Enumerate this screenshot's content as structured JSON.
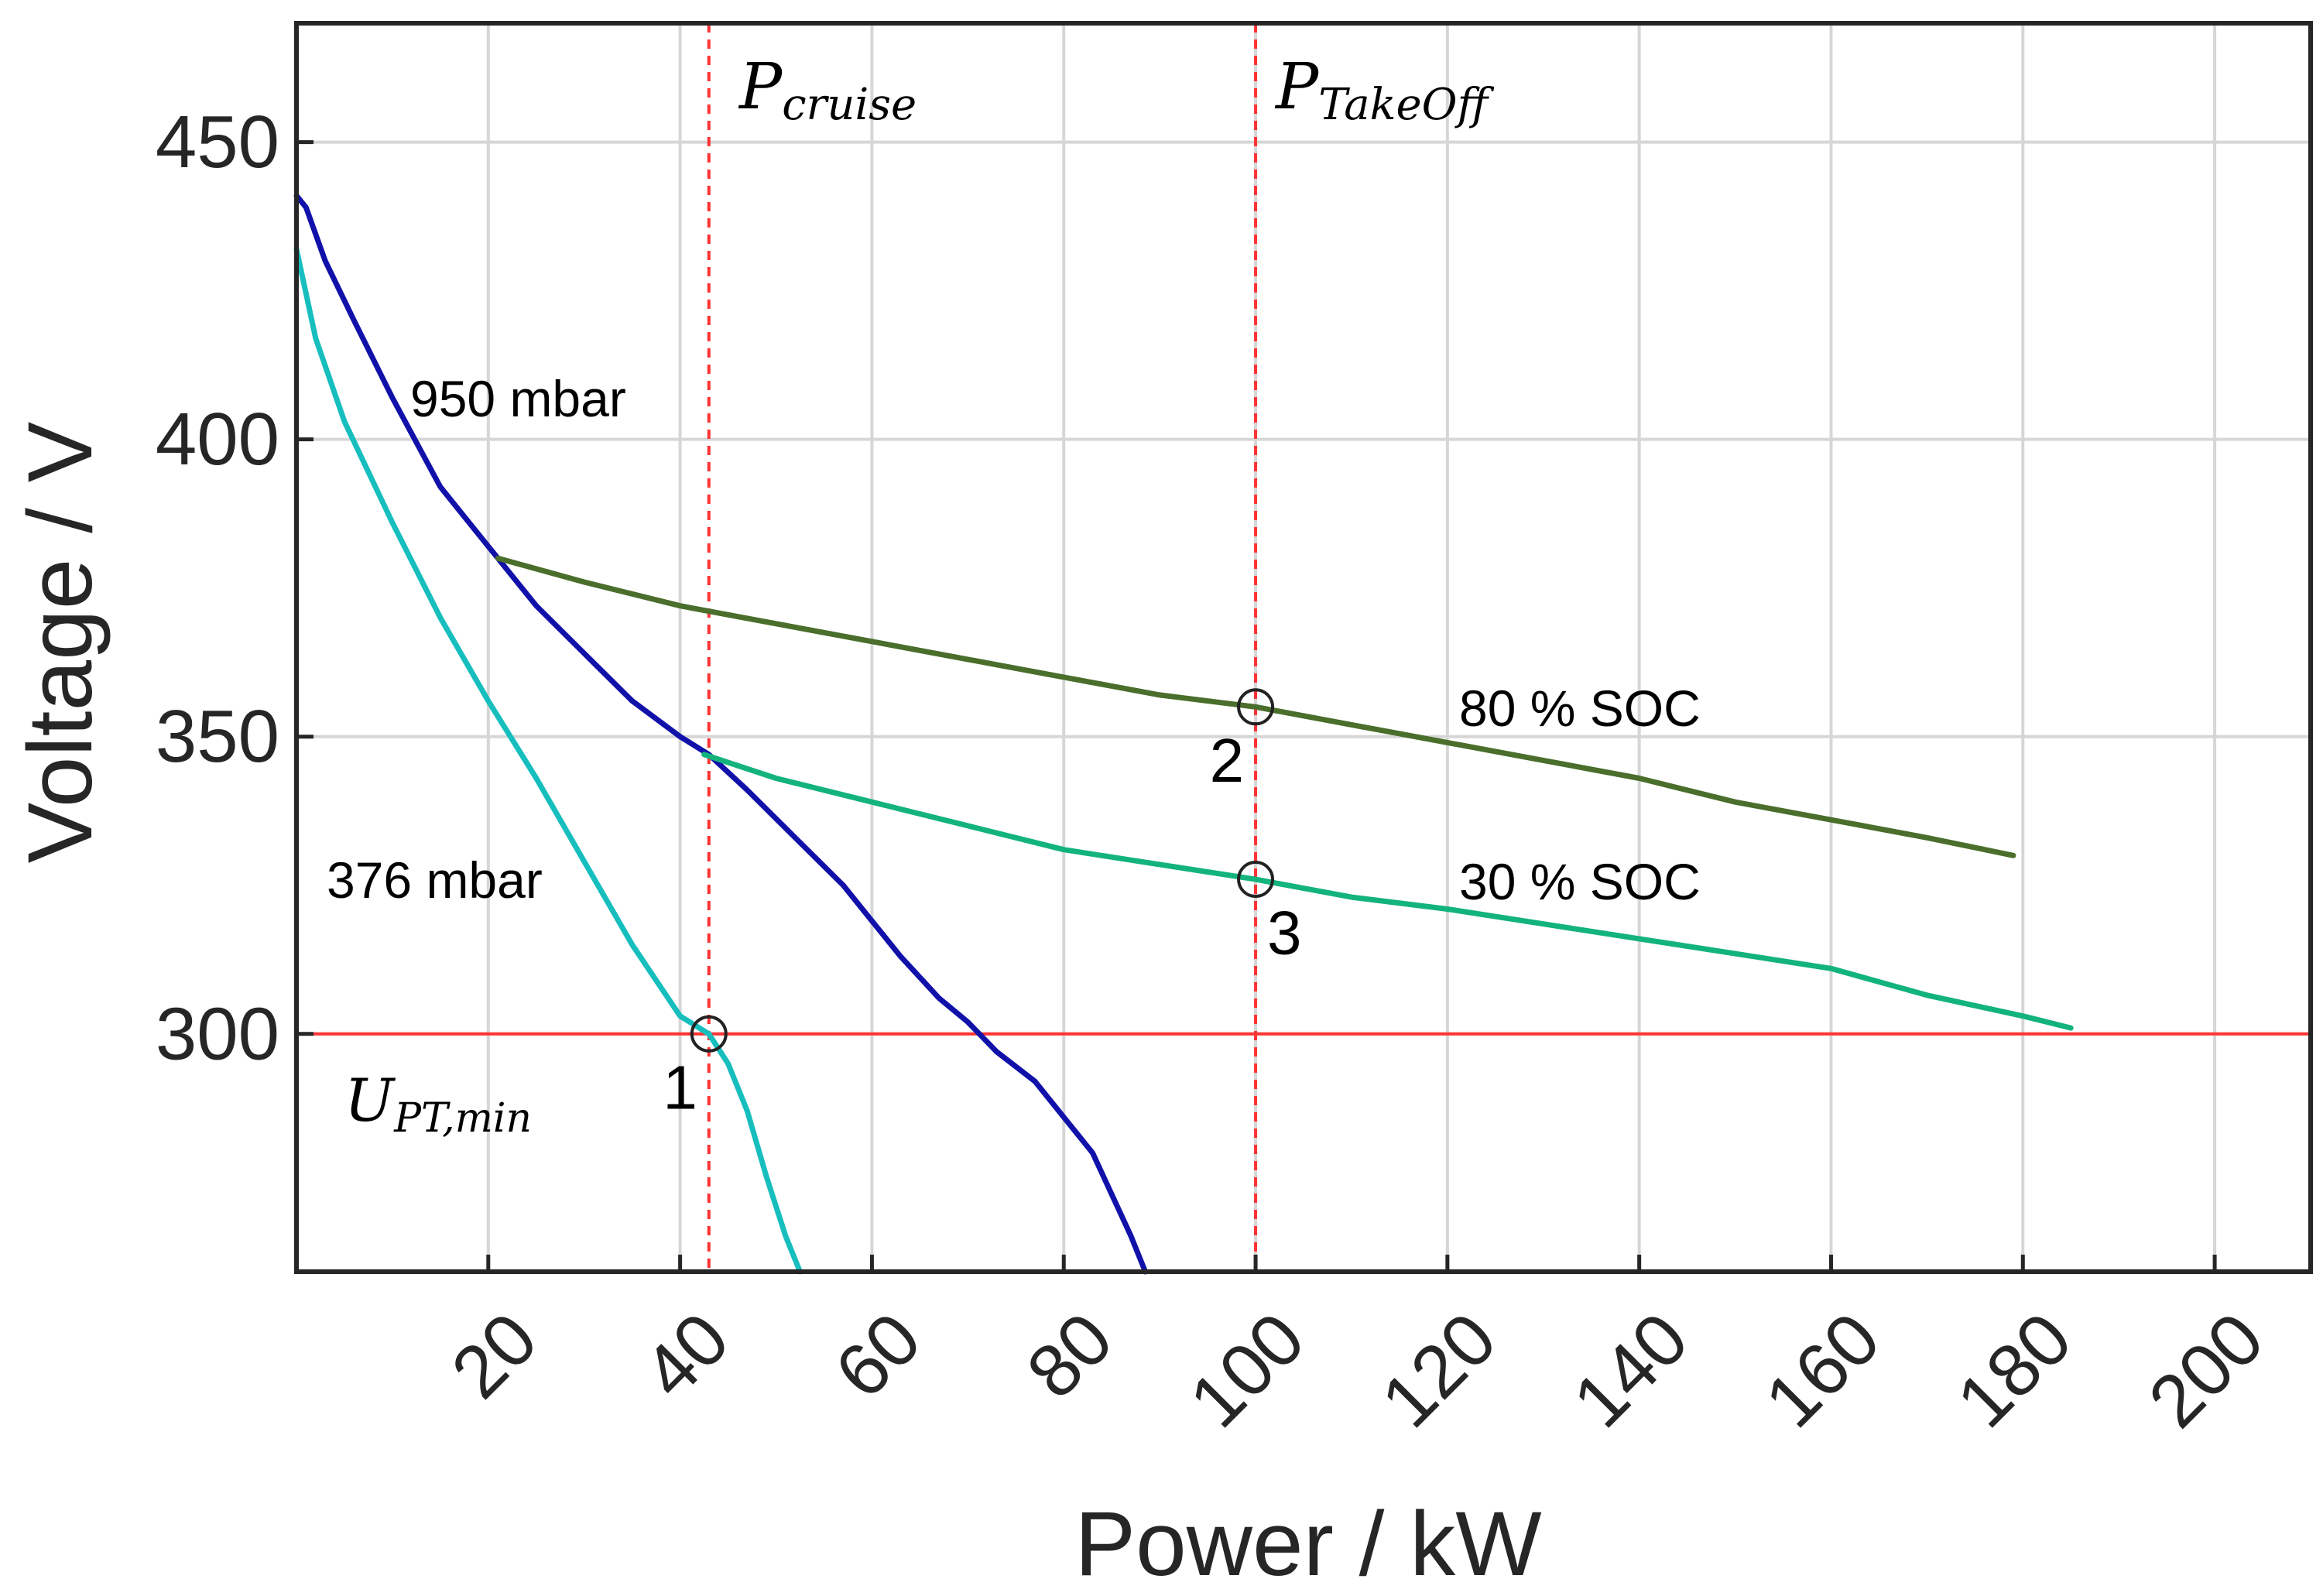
{
  "colors": {
    "p950": "#1111aa",
    "p376": "#17bebe",
    "soc80": "#4a6e2b",
    "soc30": "#13b37c",
    "threshold": "#ff3333",
    "marker": "#222222"
  },
  "chart_data": {
    "type": "line",
    "xlabel": "Power / kW",
    "ylabel": "Voltage / V",
    "xlim": [
      0,
      210
    ],
    "ylim": [
      260,
      470
    ],
    "xticks": [
      20,
      40,
      60,
      80,
      100,
      120,
      140,
      160,
      180,
      200
    ],
    "yticks": [
      300,
      350,
      400,
      450
    ],
    "grid": true,
    "series": [
      {
        "id": "p950",
        "name": "950 mbar",
        "x": [
          0,
          1,
          3,
          6,
          10,
          15,
          20,
          25,
          30,
          35,
          40,
          43,
          47,
          52,
          57,
          60,
          63,
          67,
          70,
          73,
          77,
          80,
          83,
          85,
          87,
          88.5
        ],
        "y": [
          441,
          439,
          430,
          420,
          407,
          392,
          382,
          372,
          364,
          356,
          350,
          347,
          341,
          333,
          325,
          319,
          313,
          306,
          302,
          297,
          292,
          286,
          280,
          273,
          266,
          260
        ]
      },
      {
        "id": "p376",
        "name": "376 mbar",
        "x": [
          0,
          2,
          5,
          10,
          15,
          20,
          25,
          30,
          35,
          40,
          43,
          45,
          47,
          49,
          51,
          52.5
        ],
        "y": [
          432,
          417,
          403,
          386,
          370,
          356,
          343,
          329,
          315,
          303,
          300,
          295,
          287,
          276,
          266,
          260
        ]
      },
      {
        "id": "soc80",
        "name": "80 % SOC",
        "x": [
          21,
          30,
          40,
          50,
          60,
          70,
          80,
          90,
          100,
          110,
          120,
          130,
          140,
          150,
          160,
          170,
          179
        ],
        "y": [
          380,
          376,
          372,
          369,
          366,
          363,
          360,
          357,
          355,
          352,
          349,
          346,
          343,
          339,
          336,
          333,
          330
        ]
      },
      {
        "id": "soc30",
        "name": "30 % SOC",
        "x": [
          42.5,
          50,
          60,
          70,
          80,
          90,
          100,
          110,
          120,
          130,
          140,
          150,
          160,
          170,
          180,
          185
        ],
        "y": [
          347,
          343,
          339,
          335,
          331,
          328.5,
          326,
          323,
          321,
          318.5,
          316,
          313.5,
          311,
          306.5,
          303,
          301
        ]
      }
    ],
    "reference_lines": [
      {
        "id": "p_cruise",
        "orientation": "vertical",
        "x": 43
      },
      {
        "id": "p_takeoff",
        "orientation": "vertical",
        "x": 100
      },
      {
        "id": "u_pt_min",
        "orientation": "horizontal",
        "y": 300
      }
    ],
    "markers": [
      {
        "id": "1",
        "x": 43,
        "y": 300,
        "label_dx": -3,
        "label_dy": -9
      },
      {
        "id": "2",
        "x": 100,
        "y": 355,
        "label_dx": -3,
        "label_dy": -9
      },
      {
        "id": "3",
        "x": 100,
        "y": 326,
        "label_dx": 3,
        "label_dy": -9
      }
    ],
    "annotations": {
      "p_cruise": {
        "main": "P",
        "sub": "cruise"
      },
      "p_takeoff": {
        "main": "P",
        "sub": "TakeOff"
      },
      "u_pt_min": {
        "main": "U",
        "sub": "PT,min"
      },
      "p950_label": "950 mbar",
      "p376_label": "376 mbar",
      "soc80_label": "80 % SOC",
      "soc30_label": "30 % SOC"
    }
  }
}
